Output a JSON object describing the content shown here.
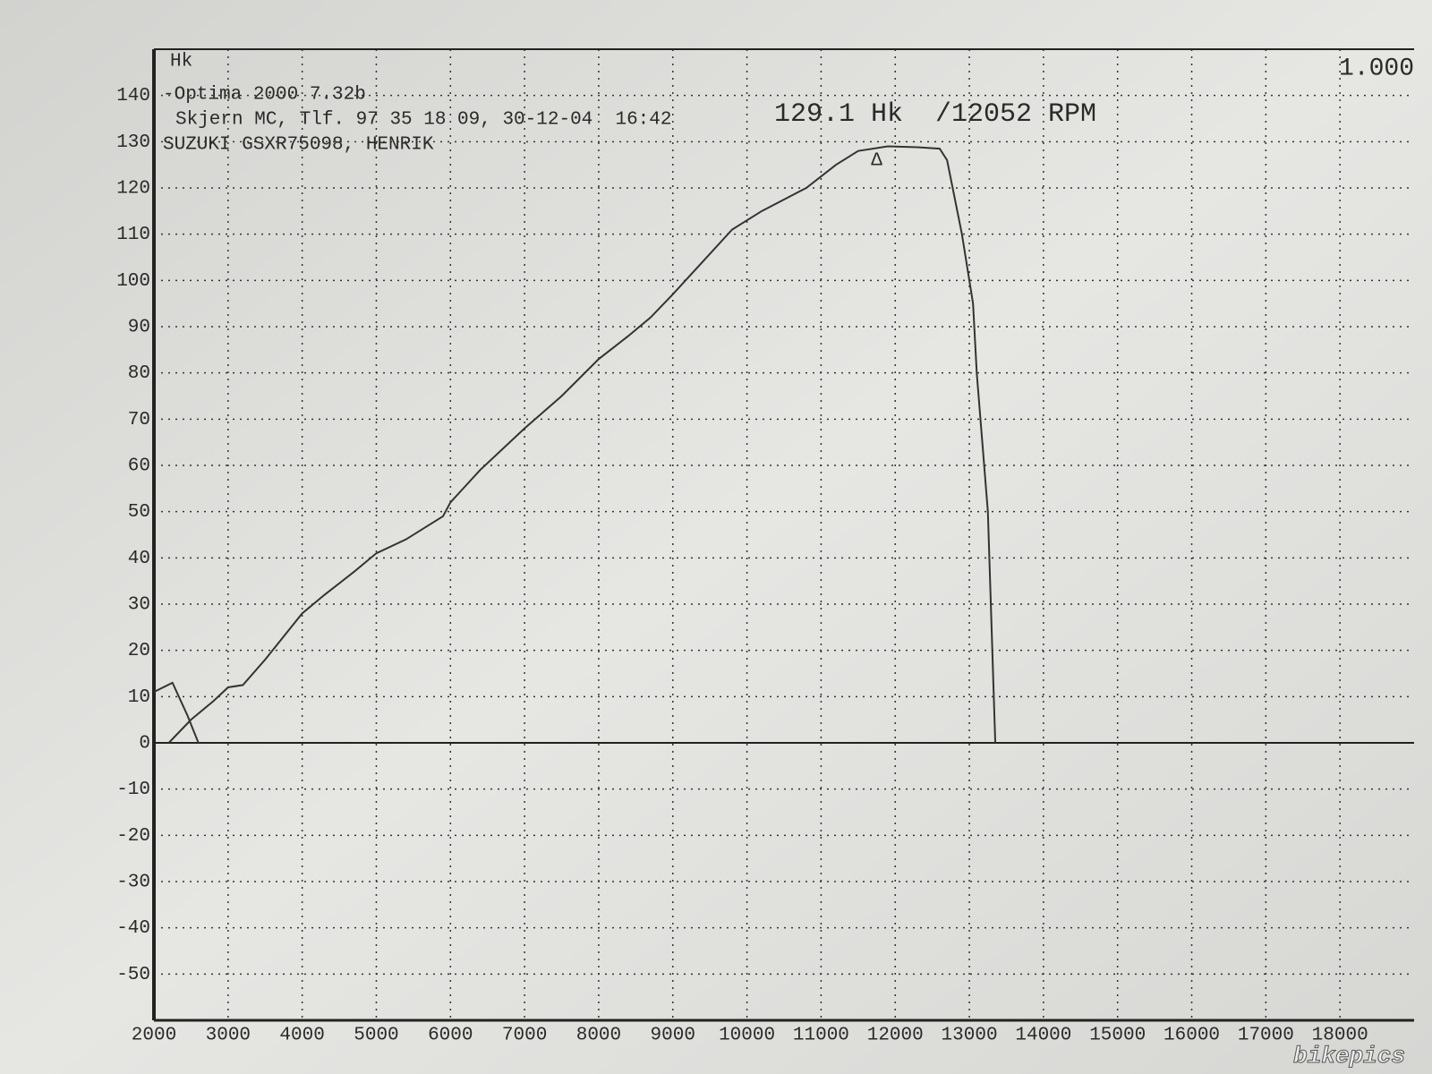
{
  "chart_data": {
    "type": "line",
    "y_label": "Hk",
    "scale_label": "1.000",
    "header_lines": [
      "-Optima 2000 7.32b",
      "Skjern MC, Tlf. 97 35 18 09, 30-12-04  16:42",
      "SUZUKI GSXR75098, HENRIK"
    ],
    "peak_text": "129.1 Hk  /12052 RPM",
    "peak_marker": {
      "text": "Δ",
      "x": 11750,
      "y": 126
    },
    "watermark": "bikepics",
    "xlim": [
      2000,
      19000
    ],
    "xticks": [
      2000,
      3000,
      4000,
      5000,
      6000,
      7000,
      8000,
      9000,
      10000,
      11000,
      12000,
      13000,
      14000,
      15000,
      16000,
      17000,
      18000
    ],
    "ylim": [
      -60,
      150
    ],
    "yticks": [
      -50,
      -40,
      -30,
      -20,
      -10,
      0,
      10,
      20,
      30,
      40,
      50,
      60,
      70,
      80,
      90,
      100,
      110,
      120,
      130,
      140
    ],
    "grid": true,
    "series": [
      {
        "color": "#333333",
        "x": [
          2000,
          2250,
          2450,
          2600,
          null,
          2200,
          2500,
          2800,
          3000,
          3200,
          3500,
          3800,
          4000,
          4300,
          4700,
          5000,
          5400,
          5900,
          6000,
          6400,
          7000,
          7500,
          8000,
          8400,
          8700,
          9000,
          9400,
          9800,
          10200,
          10800,
          11200,
          11500,
          11900,
          12300,
          12600,
          12700,
          12900,
          13050,
          13100,
          13250,
          13350
        ],
        "values": [
          11,
          13,
          6,
          0,
          null,
          0,
          5,
          9,
          12,
          12.5,
          18,
          24,
          28,
          32,
          37,
          41,
          44,
          49,
          52,
          59,
          68,
          75,
          83,
          88,
          92,
          97,
          104,
          111,
          115,
          120,
          125,
          128,
          129,
          128.8,
          128.5,
          126,
          110,
          95,
          80,
          50,
          0
        ]
      }
    ]
  }
}
